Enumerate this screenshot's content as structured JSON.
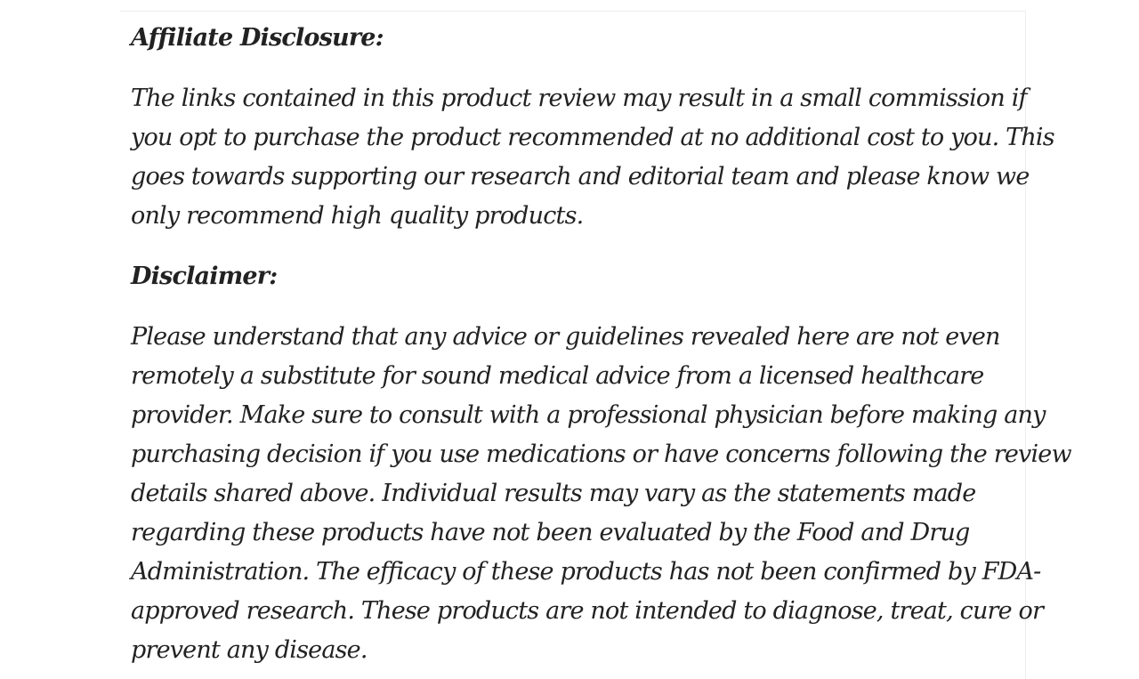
{
  "page": {
    "background_color": "#ffffff",
    "panel_border_color": "#ededed",
    "text_color": "#222222"
  },
  "article": {
    "sections": [
      {
        "heading": "Affiliate Disclosure:",
        "lines": [
          "The links contained in this product review may result in a small commission if",
          "you opt to purchase the product recommended at no additional cost to you. This",
          "goes towards supporting our research and editorial team and please know we",
          "only recommend high quality products."
        ]
      },
      {
        "heading": "Disclaimer:",
        "lines": [
          "Please understand that any advice or guidelines revealed here are not even",
          "remotely a substitute for sound medical advice from a licensed healthcare",
          "provider. Make sure to consult with a professional physician before making any",
          "purchasing decision if you use medications or have concerns following the review",
          "details shared above. Individual results may vary as the statements made",
          "regarding these products have not been evaluated by the Food and Drug",
          "Administration. The efficacy of these products has not been confirmed by FDA-",
          "approved research. These products are not intended to diagnose, treat, cure or",
          "prevent any disease."
        ]
      }
    ]
  }
}
